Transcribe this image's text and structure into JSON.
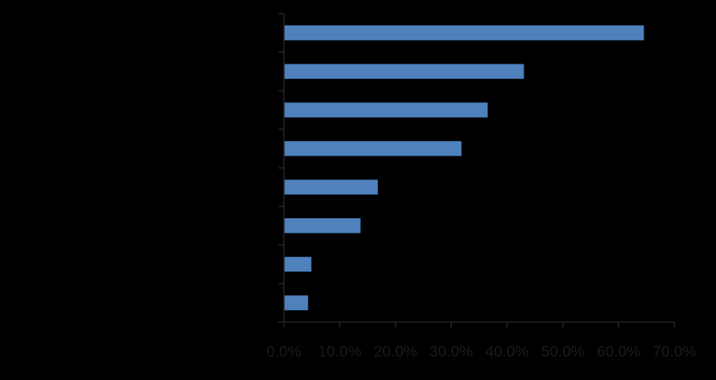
{
  "chart_data": {
    "type": "bar",
    "orientation": "horizontal",
    "title": "",
    "xlabel": "",
    "ylabel": "",
    "categories": [
      "",
      "",
      "",
      "",
      "",
      "",
      "",
      ""
    ],
    "values": [
      64.5,
      43.0,
      36.5,
      31.8,
      16.8,
      13.7,
      4.9,
      4.3
    ],
    "value_format": "percent",
    "xlim": [
      0,
      70
    ],
    "x_ticks": [
      "0.0%",
      "10.0%",
      "20.0%",
      "30.0%",
      "40.0%",
      "50.0%",
      "60.0%",
      "70.0%"
    ],
    "grid": false,
    "legend": "none",
    "colors": {
      "background": "#000000",
      "bar": "#4f81bd",
      "bar_stroke": "#3a6aa0",
      "axis": "#202020",
      "text": "#1b1b1b"
    }
  }
}
